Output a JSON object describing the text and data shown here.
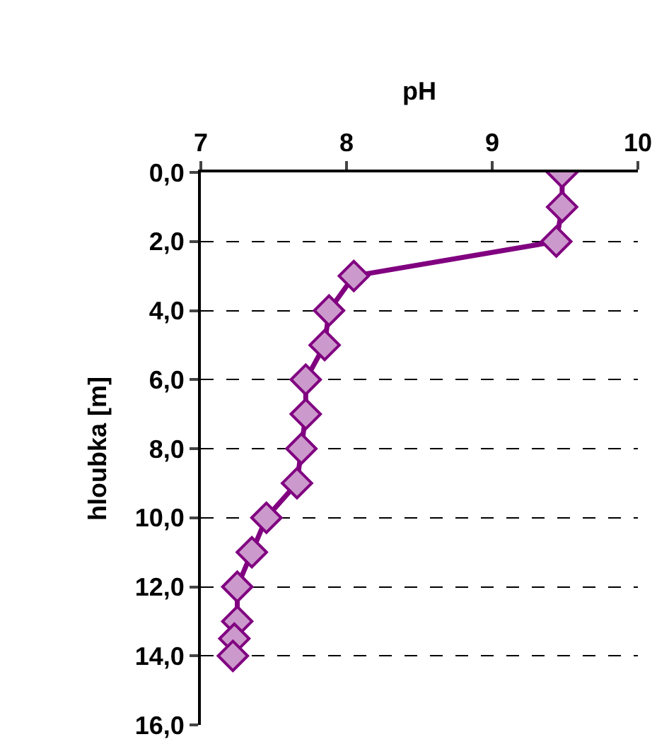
{
  "chart_data": {
    "type": "line",
    "xlabel": "pH",
    "ylabel": "hloubka [m]",
    "xlim": [
      7,
      10
    ],
    "xticks": [
      7,
      8,
      9,
      10
    ],
    "ylim": [
      16,
      0
    ],
    "yticks": [
      {
        "value": 0,
        "label": "0,0"
      },
      {
        "value": 2,
        "label": "2,0"
      },
      {
        "value": 4,
        "label": "4,0"
      },
      {
        "value": 6,
        "label": "6,0"
      },
      {
        "value": 8,
        "label": "8,0"
      },
      {
        "value": 10,
        "label": "10,0"
      },
      {
        "value": 12,
        "label": "12,0"
      },
      {
        "value": 14,
        "label": "14,0"
      },
      {
        "value": 16,
        "label": "16,0"
      }
    ],
    "grid": "y",
    "marker": "diamond",
    "line_style": "solid",
    "series": [
      {
        "color": "#800080",
        "x": [
          9.48,
          9.48,
          9.44,
          8.05,
          7.88,
          7.85,
          7.72,
          7.72,
          7.69,
          7.66,
          7.45,
          7.35,
          7.25,
          7.25,
          7.23,
          7.22
        ],
        "values": [
          0,
          1,
          2,
          3,
          4,
          5,
          6,
          7,
          8,
          9,
          10,
          11,
          12,
          13,
          13.5,
          14
        ]
      }
    ]
  }
}
